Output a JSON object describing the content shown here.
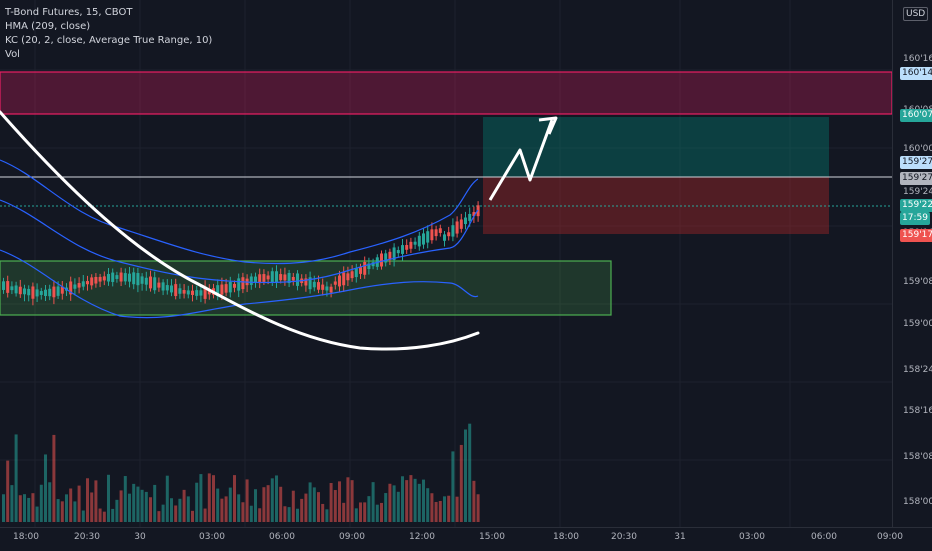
{
  "legend": {
    "symbol": "T-Bond Futures, 15, CBOT",
    "hma": "HMA (209, close)",
    "kc": "KC (20, 2, close, Average True Range, 10)",
    "vol": "Vol"
  },
  "currency": "USD",
  "price_axis": {
    "ticks": [
      "160'16",
      "160'08",
      "160'00",
      "159'24",
      "159'16",
      "159'08",
      "159'00",
      "158'24",
      "158'16",
      "158'08",
      "158'00"
    ],
    "labels": [
      {
        "text": "160'14",
        "bg": "#bbdefb",
        "fg": "#131722"
      },
      {
        "text": "160'07",
        "bg": "#26a69a",
        "fg": "#ffffff"
      },
      {
        "text": "159'27",
        "bg": "#bbdefb",
        "fg": "#131722"
      },
      {
        "text": "159'27",
        "bg": "#b2b5be",
        "fg": "#131722"
      },
      {
        "text": "159'22",
        "bg": "#26a69a",
        "fg": "#ffffff"
      },
      {
        "text": "17:59",
        "bg": "#26a69a",
        "fg": "#ffffff"
      },
      {
        "text": "159'17",
        "bg": "#ef5350",
        "fg": "#ffffff"
      }
    ]
  },
  "time_axis": {
    "ticks": [
      "18:00",
      "20:30",
      "30",
      "03:00",
      "06:00",
      "09:00",
      "12:00",
      "15:00",
      "18:00",
      "20:30",
      "31",
      "03:00",
      "06:00",
      "09:00"
    ]
  },
  "colors": {
    "bull": "#26a69a",
    "bear": "#ef5350",
    "channel": "#2962ff",
    "resistance": "#e91e63",
    "support": "#4caf50",
    "target": "#00897b",
    "stop": "#c62828"
  }
}
